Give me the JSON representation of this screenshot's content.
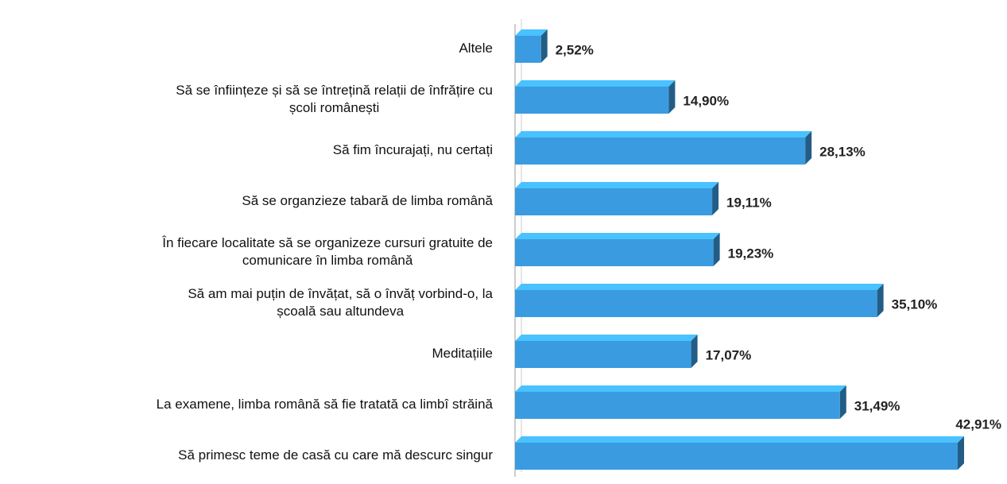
{
  "chart_data": {
    "type": "bar",
    "orientation": "horizontal",
    "categories": [
      "Altele",
      "Să se înființeze și să se întrețină relații de înfrățire cu\nșcoli românești",
      "Să fim încurajați,  nu certați",
      "Să se organzieze tabară de limba română",
      "În fiecare localitate să se organizeze cursuri gratuite de\ncomunicare în limba română",
      "Să am mai puțin de învățat, să o învăț vorbind-o, la\nșcoală sau altundeva",
      "Meditațiile",
      "La examene, limba română să fie tratată ca limbî străină",
      "Să primesc teme de casă cu care mă descurc singur"
    ],
    "values": [
      2.52,
      14.9,
      28.13,
      19.11,
      19.23,
      35.1,
      17.07,
      31.49,
      42.91
    ],
    "value_labels": [
      "2,52%",
      "14,90%",
      "28,13%",
      "19,11%",
      "19,23%",
      "35,10%",
      "17,07%",
      "31,49%",
      "42,91%"
    ],
    "color": "#3a9be0"
  }
}
